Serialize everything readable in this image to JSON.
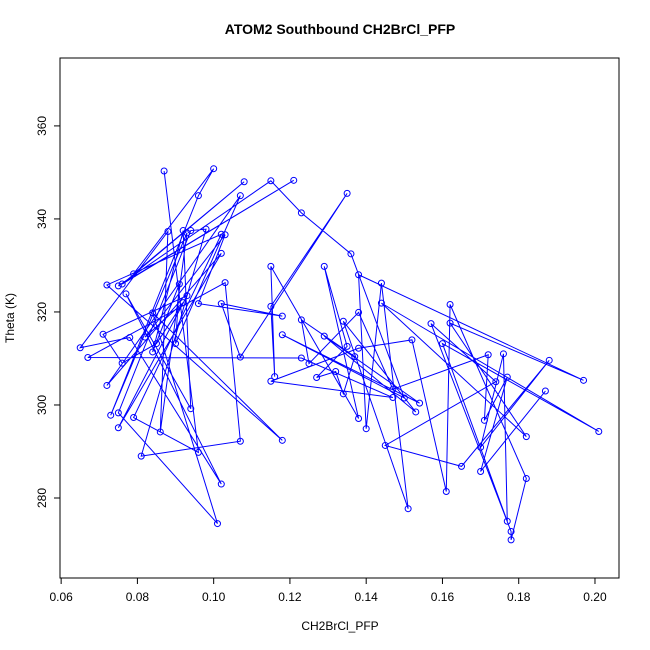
{
  "chart_data": {
    "type": "line",
    "markers": true,
    "title": "ATOM2 Southbound CH2BrCl_PFP",
    "x_label": "CH2BrCl_PFP",
    "y_label": "Theta (K)",
    "color": "#0000ff",
    "x": [
      0.087,
      0.096,
      0.079,
      0.102,
      0.072,
      0.118,
      0.084,
      0.101,
      0.075,
      0.094,
      0.098,
      0.081,
      0.107,
      0.103,
      0.067,
      0.123,
      0.147,
      0.115,
      0.138,
      0.152,
      0.161,
      0.162,
      0.182,
      0.178,
      0.178,
      0.157,
      0.174,
      0.145,
      0.165,
      0.188,
      0.17,
      0.176,
      0.177,
      0.16,
      0.201,
      0.144,
      0.182,
      0.162,
      0.197,
      0.138,
      0.14,
      0.144,
      0.151,
      0.134,
      0.153,
      0.129,
      0.154,
      0.118,
      0.15,
      0.136,
      0.123,
      0.115,
      0.075,
      0.121,
      0.076,
      0.108,
      0.079,
      0.1,
      0.096,
      0.073,
      0.093,
      0.086,
      0.088,
      0.065,
      0.078,
      0.102,
      0.077,
      0.094,
      0.092,
      0.084,
      0.091,
      0.09,
      0.107,
      0.072,
      0.102,
      0.075,
      0.093,
      0.071,
      0.076,
      0.085,
      0.092,
      0.082,
      0.103,
      0.096,
      0.118,
      0.102,
      0.107,
      0.135,
      0.115,
      0.116,
      0.115,
      0.138,
      0.129,
      0.135,
      0.127,
      0.132,
      0.134,
      0.137,
      0.123,
      0.125,
      0.138,
      0.147,
      0.172,
      0.171,
      0.177,
      0.17,
      0.187
    ],
    "values": [
      350.3,
      289.8,
      297.3,
      336.7,
      325.8,
      292.4,
      319.8,
      274.5,
      298.3,
      337.5,
      337.8,
      289,
      292.2,
      326.3,
      310.2,
      310.1,
      301.6,
      305.1,
      312.2,
      314,
      281.4,
      321.6,
      284.2,
      271,
      272.8,
      317.5,
      305,
      291.3,
      286.8,
      309.6,
      290.9,
      311,
      275,
      313.2,
      294.3,
      321.9,
      293.2,
      317.6,
      305.3,
      328,
      294.9,
      326.2,
      277.7,
      318,
      298.5,
      314.8,
      300.4,
      315.1,
      301.5,
      332.5,
      341.3,
      348.2,
      325.6,
      348.3,
      326,
      348,
      328.2,
      350.8,
      345,
      297.8,
      337,
      294.2,
      337.3,
      312.3,
      314.5,
      283,
      323.9,
      299.2,
      337.5,
      311.4,
      326,
      313.2,
      345,
      304.2,
      332.6,
      295.1,
      323.5,
      315.2,
      309,
      313.2,
      322,
      314.6,
      336.6,
      321.8,
      319.1,
      321.8,
      310.3,
      345.5,
      321.2,
      306.1,
      329.8,
      297.1,
      329.8,
      312.6,
      305.9,
      307.2,
      302.4,
      310.4,
      318.3,
      308.9,
      319.9,
      303.4,
      310.8,
      296.7,
      306,
      285.7,
      303
    ],
    "xlim": [
      0.0597,
      0.2063
    ],
    "ylim": [
      262.8,
      374.6
    ],
    "xticks": [
      {
        "value": 0.06,
        "label": "0.06"
      },
      {
        "value": 0.08,
        "label": "0.08"
      },
      {
        "value": 0.1,
        "label": "0.10"
      },
      {
        "value": 0.12,
        "label": "0.12"
      },
      {
        "value": 0.14,
        "label": "0.14"
      },
      {
        "value": 0.16,
        "label": "0.16"
      },
      {
        "value": 0.18,
        "label": "0.18"
      },
      {
        "value": 0.2,
        "label": "0.20"
      }
    ],
    "yticks": [
      280,
      300,
      320,
      340,
      360
    ]
  }
}
